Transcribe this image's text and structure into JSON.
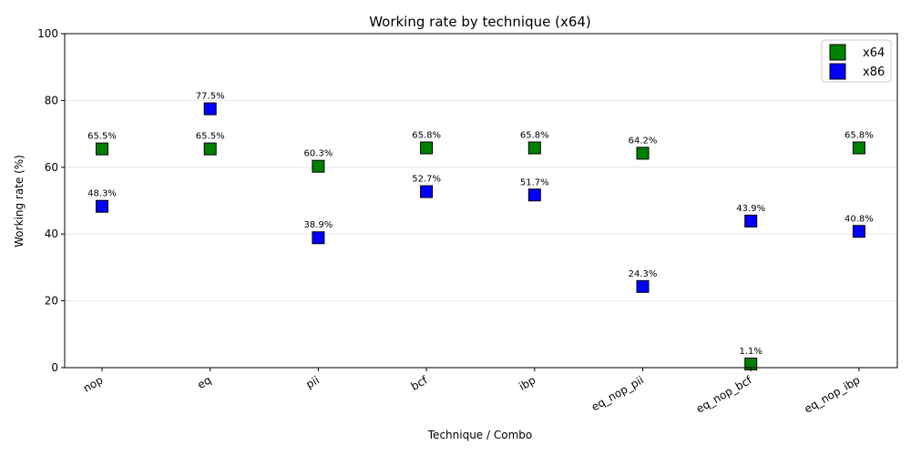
{
  "chart_data": {
    "type": "scatter",
    "title": "Working rate by technique (x64)",
    "xlabel": "Technique / Combo",
    "ylabel": "Working rate (%)",
    "ylim": [
      0,
      100
    ],
    "yticks": [
      0,
      20,
      40,
      60,
      80,
      100
    ],
    "categories": [
      "nop",
      "eq",
      "pii",
      "bcf",
      "ibp",
      "eq_nop_pii",
      "eq_nop_bcf",
      "eq_nop_ibp"
    ],
    "grid": "horizontal",
    "legend_position": "top-right",
    "series": [
      {
        "name": "x64",
        "color": "#008000",
        "values": [
          65.5,
          65.5,
          60.3,
          65.8,
          65.8,
          64.2,
          1.1,
          65.8
        ],
        "labels": [
          "65.5%",
          "65.5%",
          "60.3%",
          "65.8%",
          "65.8%",
          "64.2%",
          "1.1%",
          "65.8%"
        ]
      },
      {
        "name": "x86",
        "color": "#0000ff",
        "values": [
          48.3,
          77.5,
          38.9,
          52.7,
          51.7,
          24.3,
          43.9,
          40.8
        ],
        "labels": [
          "48.3%",
          "77.5%",
          "38.9%",
          "52.7%",
          "51.7%",
          "24.3%",
          "43.9%",
          "40.8%"
        ]
      }
    ]
  }
}
